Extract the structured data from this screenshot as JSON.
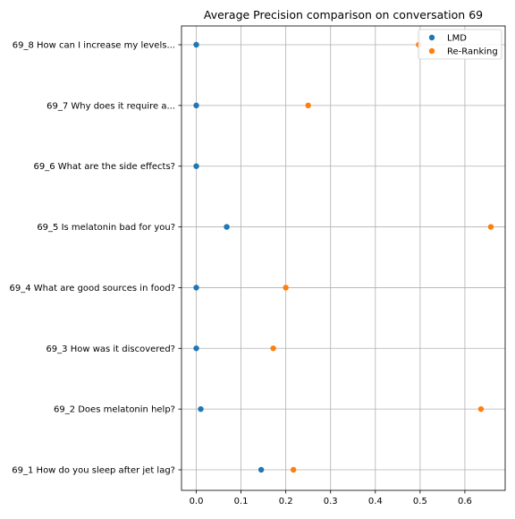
{
  "chart_data": {
    "type": "scatter",
    "title": "Average Precision comparison on conversation 69",
    "xlabel": "",
    "ylabel": "",
    "xlim": [
      -0.033,
      0.69
    ],
    "grid": true,
    "legend_position": "top-right",
    "x_ticks": [
      0.0,
      0.1,
      0.2,
      0.3,
      0.4,
      0.5,
      0.6
    ],
    "x_tick_labels": [
      "0.0",
      "0.1",
      "0.2",
      "0.3",
      "0.4",
      "0.5",
      "0.6"
    ],
    "categories": [
      "69_1 How do you sleep after jet lag?",
      "69_2 Does melatonin help?",
      "69_3 How was it discovered?",
      "69_4 What are good sources in food?",
      "69_5 Is melatonin bad for you?",
      "69_6 What are the side effects?",
      "69_7 Why does it require a...",
      "69_8 How can I increase my levels..."
    ],
    "series": [
      {
        "name": "LMD",
        "color": "#1f77b4",
        "values": [
          0.145,
          0.01,
          0.0,
          0.0,
          0.068,
          0.0,
          0.0,
          0.0
        ]
      },
      {
        "name": "Re-Ranking",
        "color": "#ff7f0e",
        "values": [
          0.217,
          0.636,
          0.172,
          0.2,
          0.658,
          null,
          0.25,
          0.497
        ]
      }
    ]
  }
}
